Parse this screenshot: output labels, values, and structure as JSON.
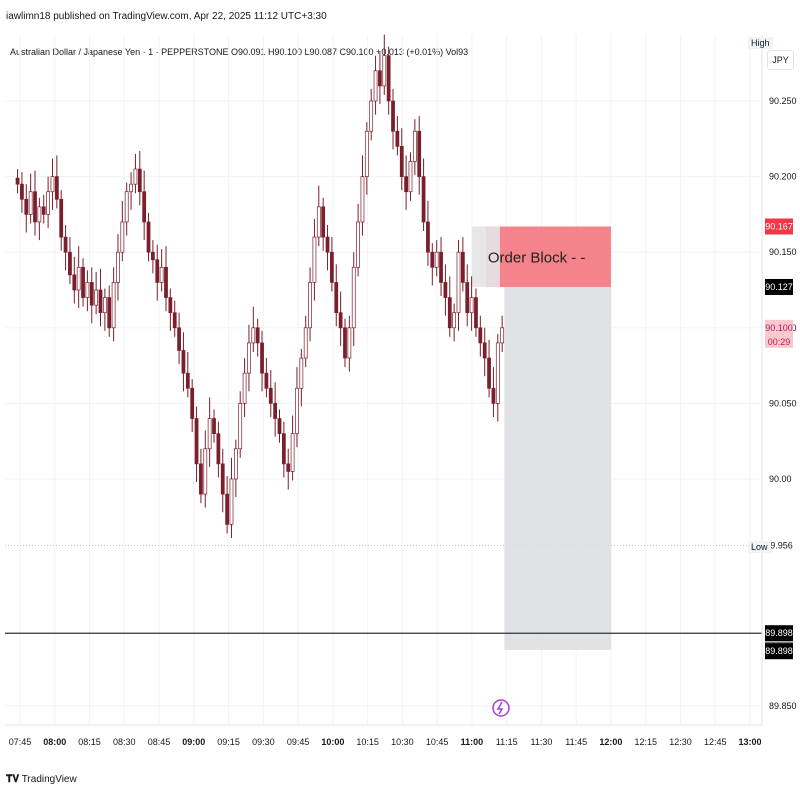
{
  "header": {
    "publisher_line": "iawlimn18 published on TradingView.com, Apr 22, 2025 11:12 UTC+3:30"
  },
  "symbol": {
    "line": "Australian Dollar / Japanese Yen · 1 · PEPPERSTONE  O90.091  H90.100  L90.087  C90.100  +0.013 (+0.01%)  Vol93"
  },
  "axis": {
    "currency": "JPY",
    "high_label": "High",
    "low_label": "Low"
  },
  "branding": {
    "logo_text": "TradingView"
  },
  "colors": {
    "bear": "#7a1f2b",
    "bull": "#ffffff",
    "order_block": "#f4767e",
    "zone": "#dcdde0",
    "grid": "#f0f3fa",
    "text": "#131722"
  },
  "chart_data": {
    "type": "candlestick",
    "ylim": [
      89.835,
      90.318
    ],
    "y_ticks": [
      90.25,
      90.2,
      90.15,
      90.1,
      90.05,
      90.0,
      89.85
    ],
    "y_tick_labels": [
      "90.250",
      "90.200",
      "90.150",
      "90.100",
      "90.050",
      "90.00",
      "89.850"
    ],
    "x_ticks": [
      {
        "label": "07:45",
        "minutes": 465,
        "bold": false
      },
      {
        "label": "08:00",
        "minutes": 480,
        "bold": true
      },
      {
        "label": "08:15",
        "minutes": 495,
        "bold": false
      },
      {
        "label": "08:30",
        "minutes": 510,
        "bold": false
      },
      {
        "label": "08:45",
        "minutes": 525,
        "bold": false
      },
      {
        "label": "09:00",
        "minutes": 540,
        "bold": true
      },
      {
        "label": "09:15",
        "minutes": 555,
        "bold": false
      },
      {
        "label": "09:30",
        "minutes": 570,
        "bold": false
      },
      {
        "label": "09:45",
        "minutes": 585,
        "bold": false
      },
      {
        "label": "10:00",
        "minutes": 600,
        "bold": true
      },
      {
        "label": "10:15",
        "minutes": 615,
        "bold": false
      },
      {
        "label": "10:30",
        "minutes": 630,
        "bold": false
      },
      {
        "label": "10:45",
        "minutes": 645,
        "bold": false
      },
      {
        "label": "11:00",
        "minutes": 660,
        "bold": true
      },
      {
        "label": "11:15",
        "minutes": 675,
        "bold": false
      },
      {
        "label": "11:30",
        "minutes": 690,
        "bold": false
      },
      {
        "label": "11:45",
        "minutes": 705,
        "bold": false
      },
      {
        "label": "12:00",
        "minutes": 720,
        "bold": true
      },
      {
        "label": "12:15",
        "minutes": 735,
        "bold": false
      },
      {
        "label": "12:30",
        "minutes": 750,
        "bold": false
      },
      {
        "label": "12:45",
        "minutes": 765,
        "bold": false
      },
      {
        "label": "13:00",
        "minutes": 780,
        "bold": true
      }
    ],
    "time_start_minutes": 463,
    "candles_close_path": [
      90.195,
      90.185,
      90.175,
      90.19,
      90.17,
      90.18,
      90.175,
      90.19,
      90.2,
      90.185,
      90.16,
      90.15,
      90.135,
      90.125,
      90.14,
      90.12,
      90.13,
      90.115,
      90.125,
      90.11,
      90.12,
      90.1,
      90.13,
      90.15,
      90.17,
      90.19,
      90.195,
      90.205,
      90.19,
      90.17,
      90.15,
      90.145,
      90.13,
      90.14,
      90.12,
      90.11,
      90.1,
      90.085,
      90.07,
      90.06,
      90.04,
      90.01,
      89.99,
      90.02,
      90.04,
      90.03,
      90.01,
      89.99,
      89.97,
      90.0,
      90.02,
      90.05,
      90.07,
      90.09,
      90.1,
      90.09,
      90.07,
      90.06,
      90.05,
      90.04,
      90.03,
      90.01,
      90.005,
      90.03,
      90.06,
      90.08,
      90.1,
      90.13,
      90.16,
      90.18,
      90.16,
      90.15,
      90.13,
      90.11,
      90.1,
      90.08,
      90.1,
      90.14,
      90.17,
      90.2,
      90.23,
      90.25,
      90.27,
      90.26,
      90.28,
      90.25,
      90.23,
      90.22,
      90.2,
      90.19,
      90.21,
      90.23,
      90.2,
      90.17,
      90.15,
      90.14,
      90.15,
      90.13,
      90.12,
      90.1,
      90.11,
      90.15,
      90.13,
      90.11,
      90.12,
      90.1,
      90.09,
      90.08,
      90.06,
      90.05,
      90.09,
      90.1
    ],
    "current_price": 90.1,
    "countdown": "00:29",
    "high_value": 90.318,
    "low_value": 89.956,
    "price_labels": [
      {
        "value": 90.167,
        "text": "90.167",
        "bg": "#f23645",
        "fg": "#ffffff"
      },
      {
        "value": 90.127,
        "text": "90.127",
        "bg": "#000000",
        "fg": "#ffffff"
      },
      {
        "value": 90.1,
        "text": "90.100",
        "bg": "#f8c8cc",
        "fg": "#c2185b"
      },
      {
        "value": 89.956,
        "text": "89.956",
        "bg": "#ffffff",
        "fg": "#131722"
      },
      {
        "value": 89.898,
        "text": "89.898",
        "bg": "#000000",
        "fg": "#ffffff"
      },
      {
        "value": 89.887,
        "text": "89.887",
        "bg": "#787b86",
        "fg": "#ffffff"
      }
    ],
    "horizontal_line": 89.898,
    "order_block": {
      "label": "Order Block",
      "top": 90.167,
      "bottom": 90.127,
      "start_minutes": 660,
      "end_minutes": 720
    },
    "target_zone": {
      "top": 90.127,
      "bottom": 89.887,
      "start_minutes": 674,
      "end_minutes": 720
    }
  }
}
